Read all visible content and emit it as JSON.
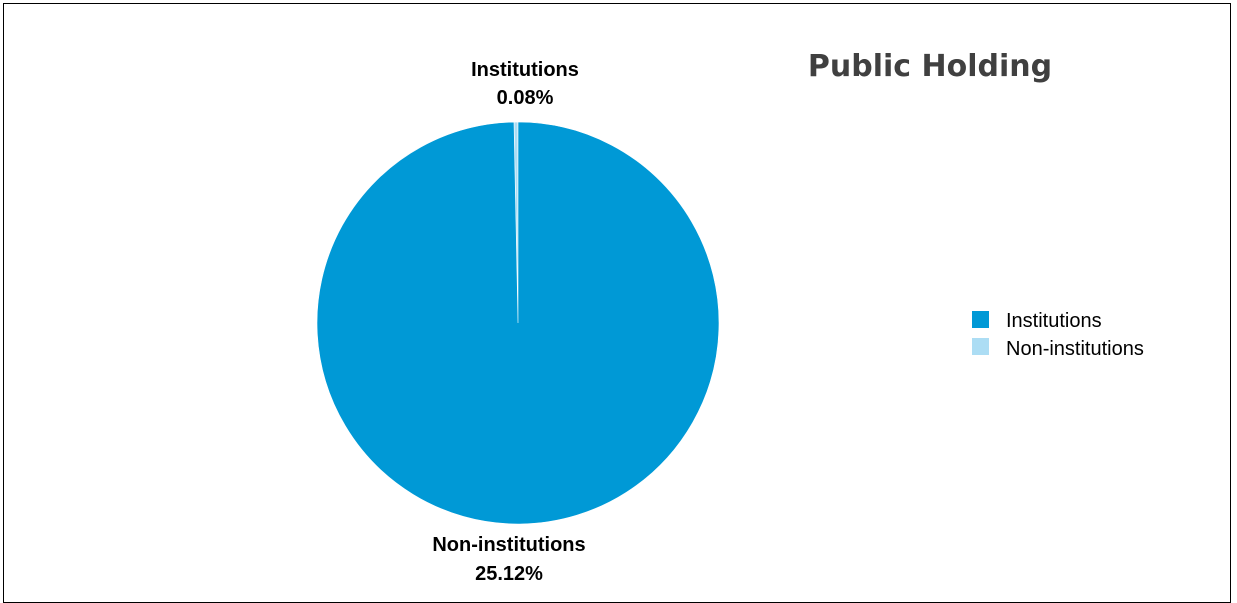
{
  "chart_data": {
    "type": "pie",
    "title": "Public Holding",
    "slices": [
      {
        "name": "Institutions",
        "label": "Institutions",
        "value_label": "0.08%",
        "value": 0.08,
        "color": "#ACDDF4"
      },
      {
        "name": "Non-institutions",
        "label": "Non-institutions",
        "value_label": "25.12%",
        "value": 25.12,
        "color": "#0099D6"
      }
    ],
    "legend": {
      "placement": "right",
      "entries": [
        {
          "label": "Institutions",
          "color": "#0099D6"
        },
        {
          "label": "Non-institutions",
          "color": "#ACDDF4"
        }
      ]
    }
  }
}
